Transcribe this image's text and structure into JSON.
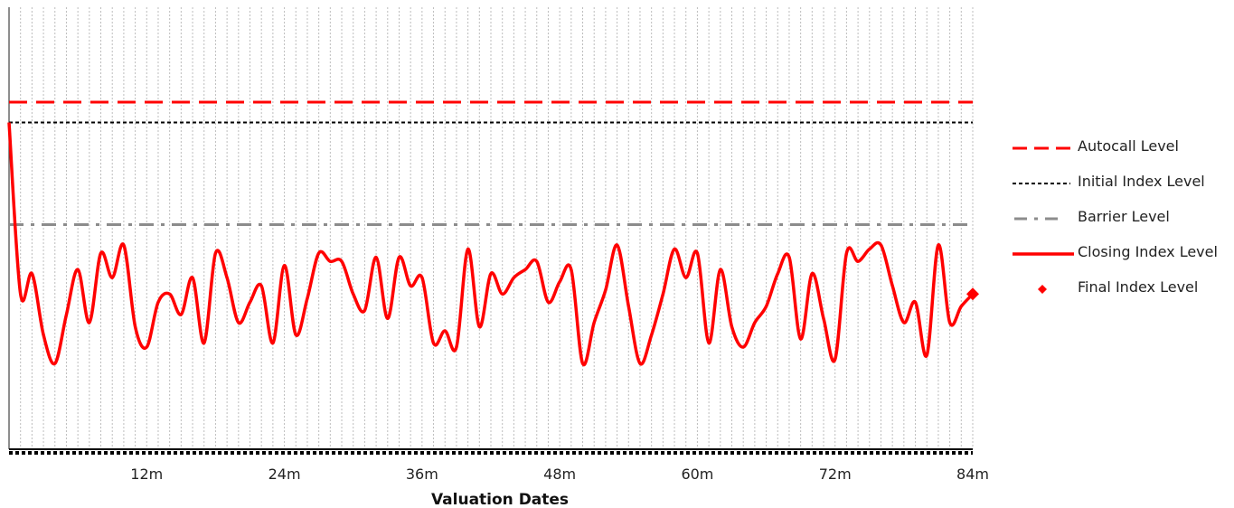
{
  "chart_data": {
    "type": "line",
    "title": "",
    "xlabel": "Valuation Dates",
    "ylabel": "",
    "x_ticks": [
      "12m",
      "24m",
      "36m",
      "48m",
      "60m",
      "72m",
      "84m"
    ],
    "x_range_months": [
      0,
      84
    ],
    "vertical_gridlines": "dotted, one per valuation date (monthly)",
    "legend_position": "right",
    "levels": {
      "autocall": 105,
      "initial": 100,
      "barrier": 75
    },
    "series": [
      {
        "name": "Closing Index Level",
        "color": "#ff0000",
        "style": "solid",
        "x": [
          0,
          1,
          2,
          3,
          4,
          5,
          6,
          7,
          8,
          9,
          10,
          11,
          12,
          13,
          14,
          15,
          16,
          17,
          18,
          19,
          20,
          21,
          22,
          23,
          24,
          25,
          26,
          27,
          28,
          29,
          30,
          31,
          32,
          33,
          34,
          35,
          36,
          37,
          38,
          39,
          40,
          41,
          42,
          43,
          44,
          45,
          46,
          47,
          48,
          49,
          50,
          51,
          52,
          53,
          54,
          55,
          56,
          57,
          58,
          59,
          60,
          61,
          62,
          63,
          64,
          65,
          66,
          67,
          68,
          69,
          70,
          71,
          72,
          73,
          74,
          75,
          76,
          77,
          78,
          79,
          80,
          81,
          82,
          83,
          84
        ],
        "y": [
          100,
          58,
          63,
          48,
          41,
          53,
          64,
          51,
          68,
          62,
          70,
          50,
          45,
          56,
          58,
          53,
          62,
          46,
          68,
          62,
          51,
          56,
          60,
          46,
          65,
          48,
          57,
          68,
          66,
          66,
          58,
          54,
          67,
          52,
          67,
          60,
          62,
          46,
          49,
          45,
          69,
          50,
          63,
          58,
          62,
          64,
          66,
          56,
          61,
          64,
          41,
          51,
          59,
          70,
          55,
          41,
          48,
          58,
          69,
          62,
          68,
          46,
          64,
          50,
          45,
          51,
          55,
          63,
          67,
          47,
          63,
          52,
          42,
          68,
          66,
          69,
          70,
          60,
          51,
          56,
          43,
          70,
          51,
          55,
          58
        ]
      },
      {
        "name": "Autocall Level",
        "color": "#ff0000",
        "style": "dashed"
      },
      {
        "name": "Initial Index Level",
        "color": "#000000",
        "style": "dotted"
      },
      {
        "name": "Barrier Level",
        "color": "#808080",
        "style": "dash-dot"
      },
      {
        "name": "Final Index Level",
        "color": "#ff0000",
        "style": "diamond-marker",
        "x": 84,
        "y": 58
      }
    ]
  },
  "legend": {
    "items": [
      {
        "key": "autocall",
        "label": "Autocall Level"
      },
      {
        "key": "initial",
        "label": "Initial Index Level"
      },
      {
        "key": "barrier",
        "label": "Barrier Level"
      },
      {
        "key": "closing",
        "label": "Closing Index Level"
      },
      {
        "key": "final",
        "label": "Final Index Level"
      }
    ]
  }
}
